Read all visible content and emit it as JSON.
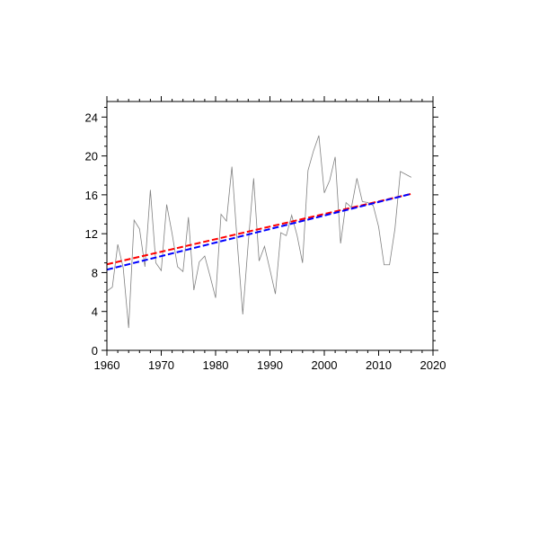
{
  "chart_data": {
    "type": "line",
    "title": "",
    "xlabel": "",
    "ylabel": "",
    "xlim": [
      1960,
      2020
    ],
    "ylim": [
      0,
      25.6
    ],
    "xticks": [
      1960,
      1970,
      1980,
      1990,
      2000,
      2010,
      2020
    ],
    "yticks": [
      0,
      4,
      8,
      12,
      16,
      20,
      24
    ],
    "grid": false,
    "legend": "none",
    "x": [
      1960,
      1961,
      1962,
      1963,
      1964,
      1965,
      1966,
      1967,
      1968,
      1969,
      1970,
      1971,
      1972,
      1973,
      1974,
      1975,
      1976,
      1977,
      1978,
      1979,
      1980,
      1981,
      1982,
      1983,
      1984,
      1985,
      1986,
      1987,
      1988,
      1989,
      1990,
      1991,
      1992,
      1993,
      1994,
      1995,
      1996,
      1997,
      1998,
      1999,
      2000,
      2001,
      2002,
      2003,
      2004,
      2005,
      2006,
      2007,
      2008,
      2009,
      2010,
      2011,
      2012,
      2013,
      2014,
      2015,
      2016
    ],
    "series": [
      {
        "style": "solid",
        "color": "#808080",
        "values": [
          6.1,
          6.5,
          10.9,
          8.5,
          2.3,
          13.4,
          12.5,
          8.6,
          16.5,
          9.0,
          8.2,
          15.0,
          12.0,
          8.6,
          8.1,
          13.7,
          6.2,
          9.1,
          9.7,
          7.6,
          5.4,
          14.0,
          13.3,
          18.9,
          11.0,
          3.7,
          11.0,
          17.7,
          9.2,
          10.7,
          8.3,
          5.8,
          12.1,
          11.8,
          13.9,
          11.8,
          9.0,
          18.5,
          20.5,
          22.1,
          16.2,
          17.5,
          19.9,
          11.0,
          15.2,
          14.7,
          17.7,
          15.3,
          15.2,
          14.9,
          12.7,
          8.8,
          8.8,
          12.5,
          18.4,
          18.1,
          17.8
        ]
      },
      {
        "style": "dashed",
        "color": "#ff0000",
        "trend": {
          "x": [
            1960,
            2016
          ],
          "y": [
            8.85,
            16.1
          ]
        }
      },
      {
        "style": "dashed",
        "color": "#0000ff",
        "trend": {
          "x": [
            1960,
            2016
          ],
          "y": [
            8.3,
            16.1
          ]
        }
      }
    ]
  }
}
